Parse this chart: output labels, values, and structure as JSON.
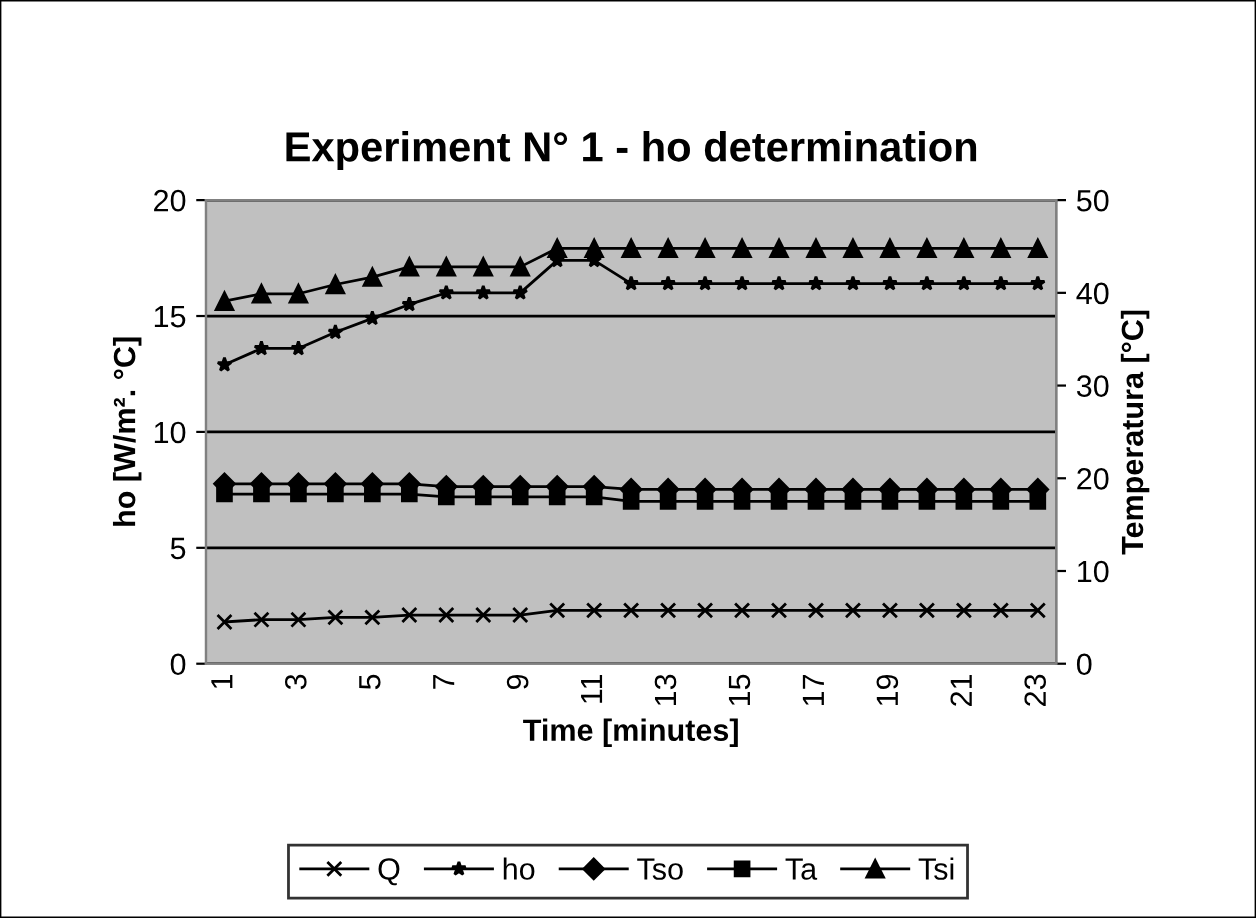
{
  "chart_data": {
    "type": "line",
    "title": "Experiment N° 1 - ho determination",
    "xlabel": "Time [minutes]",
    "ylabel": "ho [W/m². °C]",
    "y2label": "Temperatura [°C]",
    "categories": [
      "1",
      null,
      "3",
      null,
      "5",
      null,
      "7",
      null,
      "9",
      null,
      "11",
      null,
      "13",
      null,
      "15",
      null,
      "17",
      null,
      "19",
      null,
      "21",
      null,
      "23"
    ],
    "series": [
      {
        "name": "Q",
        "color": "#000000",
        "marker": "cross",
        "values": [
          1.8,
          1.9,
          1.9,
          2.0,
          2.0,
          2.1,
          2.1,
          2.1,
          2.1,
          2.3,
          2.3,
          2.3,
          2.3,
          2.3,
          2.3,
          2.3,
          2.3,
          2.3,
          2.3,
          2.3,
          2.3,
          2.3,
          2.3
        ]
      },
      {
        "name": "ho",
        "color": "#000000",
        "marker": "star",
        "values": [
          12.9,
          13.6,
          13.6,
          14.3,
          14.9,
          15.5,
          16.0,
          16.0,
          16.0,
          17.4,
          17.4,
          16.4,
          16.4,
          16.4,
          16.4,
          16.4,
          16.4,
          16.4,
          16.4,
          16.4,
          16.4,
          16.4,
          16.4
        ]
      },
      {
        "name": "Tso",
        "color": "#000000",
        "marker": "diamond",
        "axis": "y2",
        "values": [
          19.4,
          19.4,
          19.4,
          19.4,
          19.4,
          19.4,
          19.1,
          19.1,
          19.1,
          19.1,
          19.1,
          18.8,
          18.8,
          18.8,
          18.8,
          18.8,
          18.8,
          18.8,
          18.8,
          18.8,
          18.8,
          18.8,
          18.8
        ]
      },
      {
        "name": "Ta",
        "color": "#000000",
        "marker": "square",
        "axis": "y2",
        "values": [
          18.3,
          18.3,
          18.3,
          18.3,
          18.3,
          18.3,
          18.0,
          18.0,
          18.0,
          18.0,
          18.0,
          17.5,
          17.5,
          17.5,
          17.5,
          17.5,
          17.5,
          17.5,
          17.5,
          17.5,
          17.5,
          17.5,
          17.5
        ]
      },
      {
        "name": "Tsi",
        "color": "#000000",
        "marker": "triangle",
        "axis": "y2",
        "values": [
          39.1,
          39.9,
          39.9,
          40.9,
          41.7,
          42.8,
          42.8,
          42.8,
          42.8,
          44.8,
          44.8,
          44.8,
          44.8,
          44.8,
          44.8,
          44.8,
          44.8,
          44.8,
          44.8,
          44.8,
          44.8,
          44.8,
          44.8
        ]
      }
    ],
    "ylim": [
      0,
      20
    ],
    "yticks": [
      0,
      5,
      10,
      15,
      20
    ],
    "y2lim": [
      0,
      50
    ],
    "y2ticks": [
      0,
      10,
      20,
      30,
      40,
      50
    ],
    "grid": "y",
    "legend": "bottom",
    "line_style": "solid"
  }
}
